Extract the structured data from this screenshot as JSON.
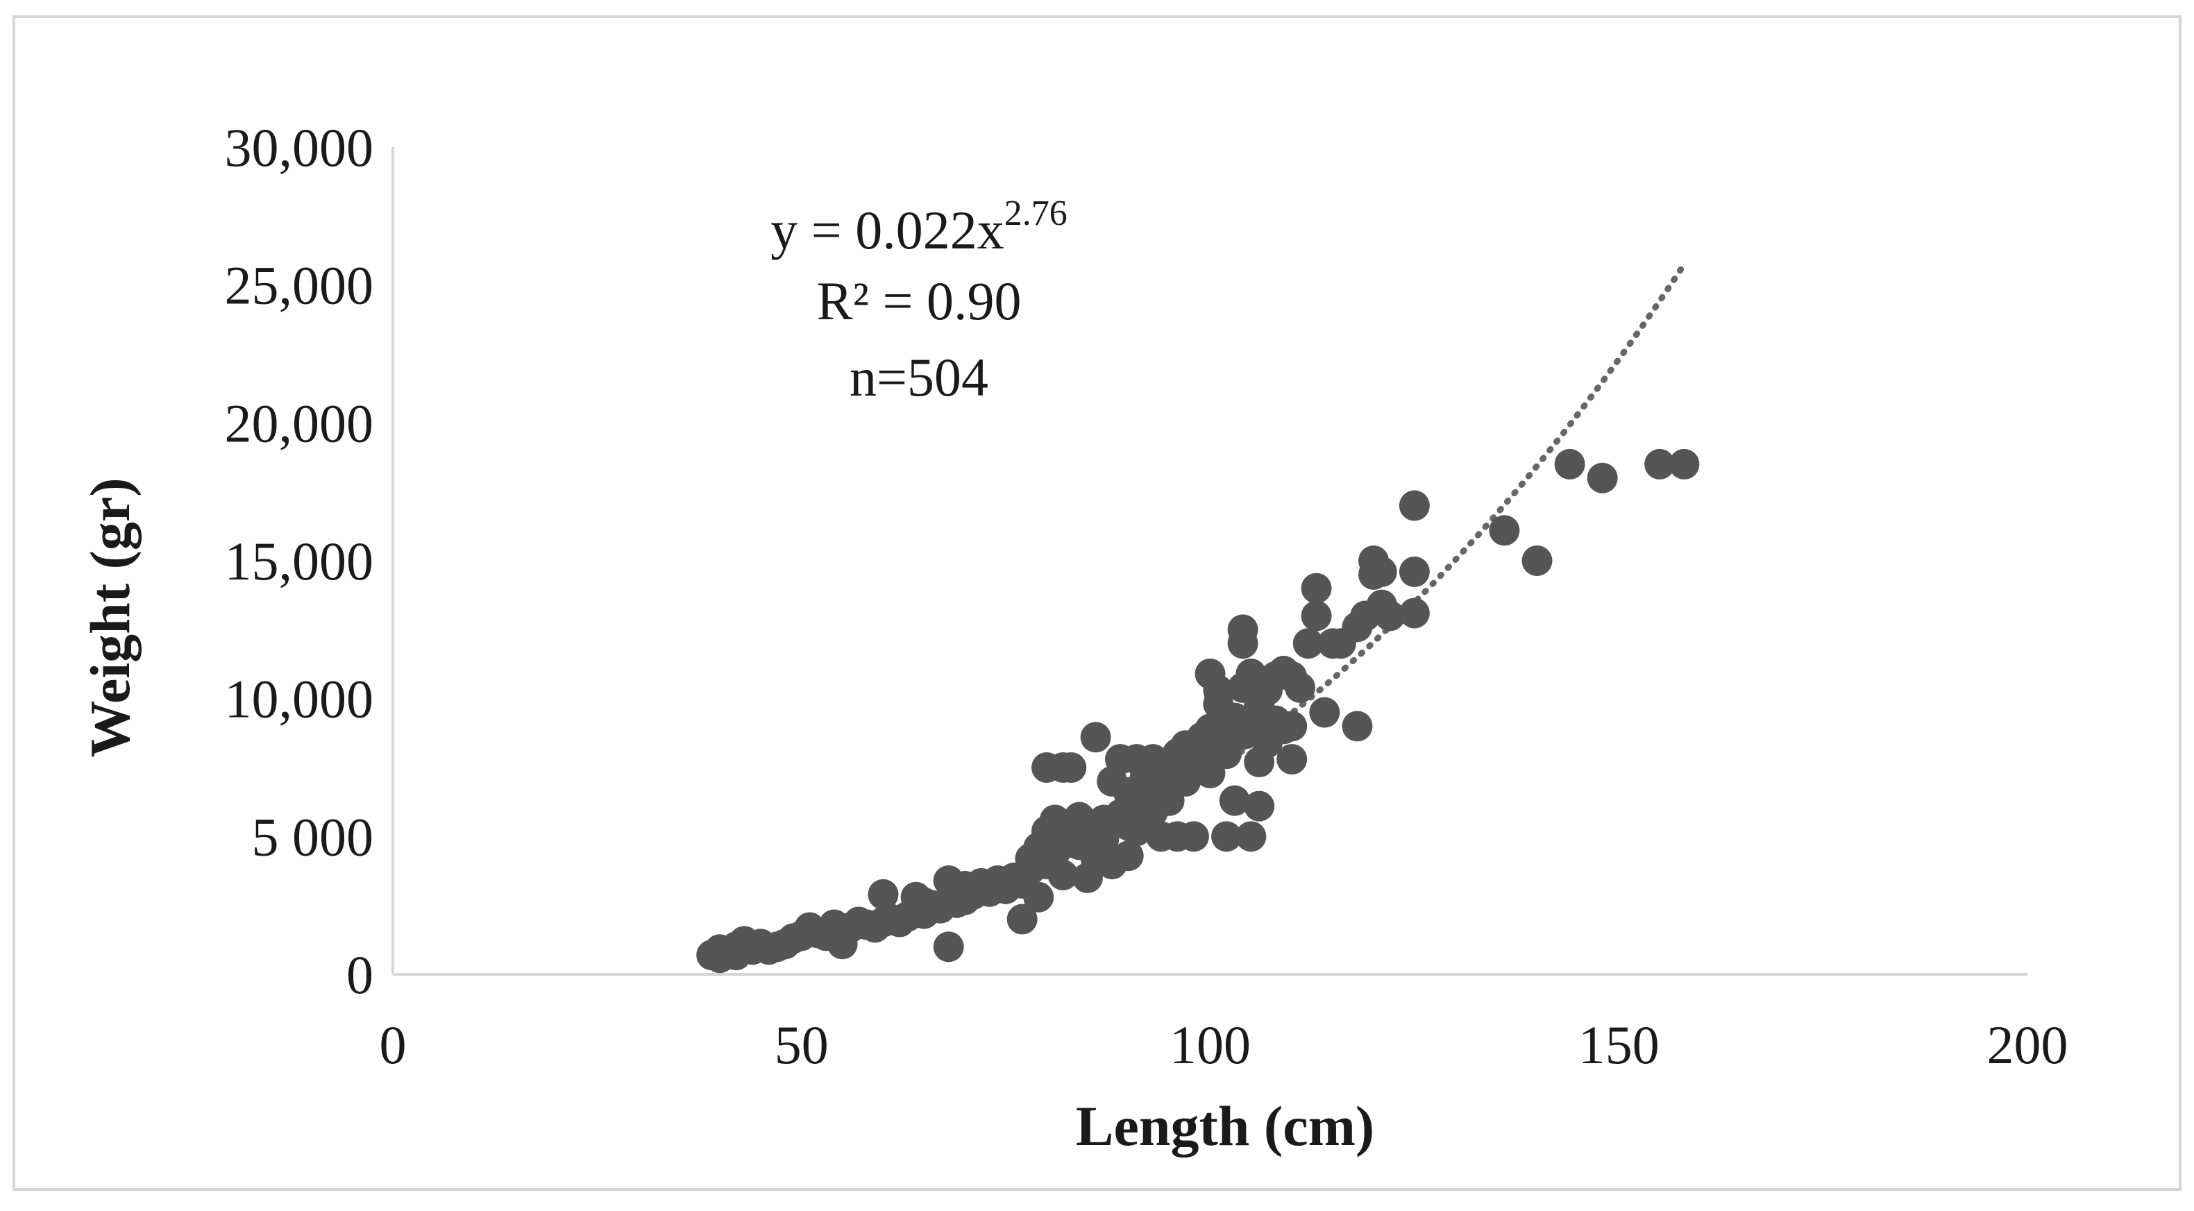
{
  "chart_data": {
    "type": "scatter",
    "title": "",
    "xlabel": "Length (cm)",
    "ylabel": "Weight (gr)",
    "xlim": [
      0,
      200
    ],
    "ylim": [
      0,
      30000
    ],
    "x_ticks": [
      "0",
      "50",
      "100",
      "150",
      "200"
    ],
    "y_ticks": [
      "0",
      "5 000",
      "10,000",
      "15,000",
      "20,000",
      "25,000",
      "30,000"
    ],
    "grid": false,
    "legend": "none",
    "point_color": "#555555",
    "trend_color": "#666666",
    "annotation": {
      "equation_base": "y = 0.022x",
      "equation_exponent": "2.76",
      "r_squared": "R² = 0.90",
      "n": "n=504"
    },
    "trendline": {
      "type": "power",
      "a": 0.022,
      "b": 2.76,
      "x_range": [
        40,
        158
      ],
      "style": "dotted"
    },
    "series": [
      {
        "points": [
          [
            39,
            700
          ],
          [
            40,
            600
          ],
          [
            40,
            900
          ],
          [
            41,
            800
          ],
          [
            42,
            700
          ],
          [
            42,
            1000
          ],
          [
            43,
            1200
          ],
          [
            44,
            900
          ],
          [
            45,
            1100
          ],
          [
            46,
            900
          ],
          [
            47,
            1000
          ],
          [
            48,
            1100
          ],
          [
            49,
            1300
          ],
          [
            50,
            1400
          ],
          [
            51,
            1700
          ],
          [
            52,
            1500
          ],
          [
            53,
            1400
          ],
          [
            54,
            1800
          ],
          [
            55,
            1600
          ],
          [
            55,
            1100
          ],
          [
            56,
            1700
          ],
          [
            57,
            1900
          ],
          [
            58,
            1800
          ],
          [
            59,
            1700
          ],
          [
            60,
            2900
          ],
          [
            60,
            1900
          ],
          [
            61,
            2000
          ],
          [
            62,
            1900
          ],
          [
            63,
            2100
          ],
          [
            64,
            2800
          ],
          [
            65,
            2200
          ],
          [
            65,
            2600
          ],
          [
            66,
            2500
          ],
          [
            67,
            2400
          ],
          [
            68,
            3400
          ],
          [
            68,
            1000
          ],
          [
            69,
            2600
          ],
          [
            70,
            3200
          ],
          [
            70,
            2700
          ],
          [
            71,
            2900
          ],
          [
            72,
            3300
          ],
          [
            73,
            3000
          ],
          [
            74,
            3400
          ],
          [
            75,
            3100
          ],
          [
            76,
            3500
          ],
          [
            77,
            2000
          ],
          [
            77,
            3300
          ],
          [
            78,
            3800
          ],
          [
            78,
            4200
          ],
          [
            79,
            4600
          ],
          [
            79,
            2800
          ],
          [
            80,
            5200
          ],
          [
            80,
            4000
          ],
          [
            80,
            7500
          ],
          [
            81,
            5600
          ],
          [
            81,
            4400
          ],
          [
            82,
            7500
          ],
          [
            82,
            3600
          ],
          [
            83,
            4900
          ],
          [
            83,
            5400
          ],
          [
            83,
            7500
          ],
          [
            84,
            5700
          ],
          [
            84,
            4700
          ],
          [
            85,
            3500
          ],
          [
            85,
            5100
          ],
          [
            86,
            8600
          ],
          [
            86,
            4200
          ],
          [
            87,
            5600
          ],
          [
            87,
            4900
          ],
          [
            88,
            7000
          ],
          [
            88,
            4000
          ],
          [
            89,
            5800
          ],
          [
            89,
            7800
          ],
          [
            90,
            5400
          ],
          [
            90,
            6600
          ],
          [
            90,
            4300
          ],
          [
            91,
            7800
          ],
          [
            91,
            5200
          ],
          [
            92,
            6200
          ],
          [
            92,
            7100
          ],
          [
            93,
            5900
          ],
          [
            93,
            7800
          ],
          [
            94,
            6800
          ],
          [
            94,
            5000
          ],
          [
            95,
            7200
          ],
          [
            95,
            6300
          ],
          [
            96,
            5000
          ],
          [
            96,
            8000
          ],
          [
            97,
            7000
          ],
          [
            97,
            8300
          ],
          [
            98,
            7600
          ],
          [
            98,
            5000
          ],
          [
            99,
            8600
          ],
          [
            99,
            7900
          ],
          [
            100,
            8900
          ],
          [
            100,
            7300
          ],
          [
            100,
            10900
          ],
          [
            101,
            9800
          ],
          [
            101,
            10300
          ],
          [
            102,
            8500
          ],
          [
            102,
            8000
          ],
          [
            102,
            5000
          ],
          [
            103,
            9300
          ],
          [
            103,
            6300
          ],
          [
            104,
            12000
          ],
          [
            104,
            12500
          ],
          [
            104,
            8700
          ],
          [
            104,
            10400
          ],
          [
            105,
            9000
          ],
          [
            105,
            5000
          ],
          [
            105,
            10900
          ],
          [
            106,
            7700
          ],
          [
            106,
            9800
          ],
          [
            106,
            6100
          ],
          [
            107,
            8400
          ],
          [
            107,
            10300
          ],
          [
            108,
            9200
          ],
          [
            108,
            10800
          ],
          [
            109,
            8900
          ],
          [
            109,
            11000
          ],
          [
            110,
            7800
          ],
          [
            110,
            9000
          ],
          [
            110,
            10800
          ],
          [
            111,
            10400
          ],
          [
            112,
            12000
          ],
          [
            113,
            13000
          ],
          [
            113,
            14000
          ],
          [
            114,
            9500
          ],
          [
            115,
            12000
          ],
          [
            116,
            12000
          ],
          [
            118,
            9000
          ],
          [
            118,
            12600
          ],
          [
            119,
            13000
          ],
          [
            120,
            15000
          ],
          [
            120,
            14500
          ],
          [
            121,
            14600
          ],
          [
            121,
            13400
          ],
          [
            122,
            13000
          ],
          [
            125,
            17000
          ],
          [
            125,
            14600
          ],
          [
            125,
            13100
          ],
          [
            136,
            16100
          ],
          [
            140,
            15000
          ],
          [
            144,
            18500
          ],
          [
            148,
            18000
          ],
          [
            155,
            18500
          ],
          [
            158,
            18500
          ]
        ]
      }
    ]
  }
}
